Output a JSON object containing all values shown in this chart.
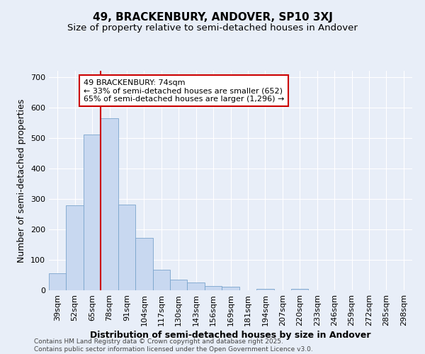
{
  "title": "49, BRACKENBURY, ANDOVER, SP10 3XJ",
  "subtitle": "Size of property relative to semi-detached houses in Andover",
  "xlabel": "Distribution of semi-detached houses by size in Andover",
  "ylabel": "Number of semi-detached properties",
  "categories": [
    "39sqm",
    "52sqm",
    "65sqm",
    "78sqm",
    "91sqm",
    "104sqm",
    "117sqm",
    "130sqm",
    "143sqm",
    "156sqm",
    "169sqm",
    "181sqm",
    "194sqm",
    "207sqm",
    "220sqm",
    "233sqm",
    "246sqm",
    "259sqm",
    "272sqm",
    "285sqm",
    "298sqm"
  ],
  "values": [
    55,
    278,
    510,
    565,
    282,
    172,
    67,
    35,
    25,
    13,
    12,
    0,
    5,
    0,
    5,
    0,
    0,
    0,
    0,
    0,
    0
  ],
  "bar_color": "#c8d8f0",
  "bar_edge_color": "#7aa4cc",
  "background_color": "#e8eef8",
  "grid_color": "#ffffff",
  "vline_color": "#cc0000",
  "vline_x_index": 3,
  "annotation_text": "49 BRACKENBURY: 74sqm\n← 33% of semi-detached houses are smaller (652)\n65% of semi-detached houses are larger (1,296) →",
  "annotation_box_facecolor": "#ffffff",
  "annotation_box_edgecolor": "#cc0000",
  "footer": "Contains HM Land Registry data © Crown copyright and database right 2025.\nContains public sector information licensed under the Open Government Licence v3.0.",
  "ylim": [
    0,
    720
  ],
  "yticks": [
    0,
    100,
    200,
    300,
    400,
    500,
    600,
    700
  ],
  "title_fontsize": 11,
  "subtitle_fontsize": 9.5,
  "axis_label_fontsize": 9,
  "tick_fontsize": 8,
  "annotation_fontsize": 8,
  "footer_fontsize": 6.5
}
